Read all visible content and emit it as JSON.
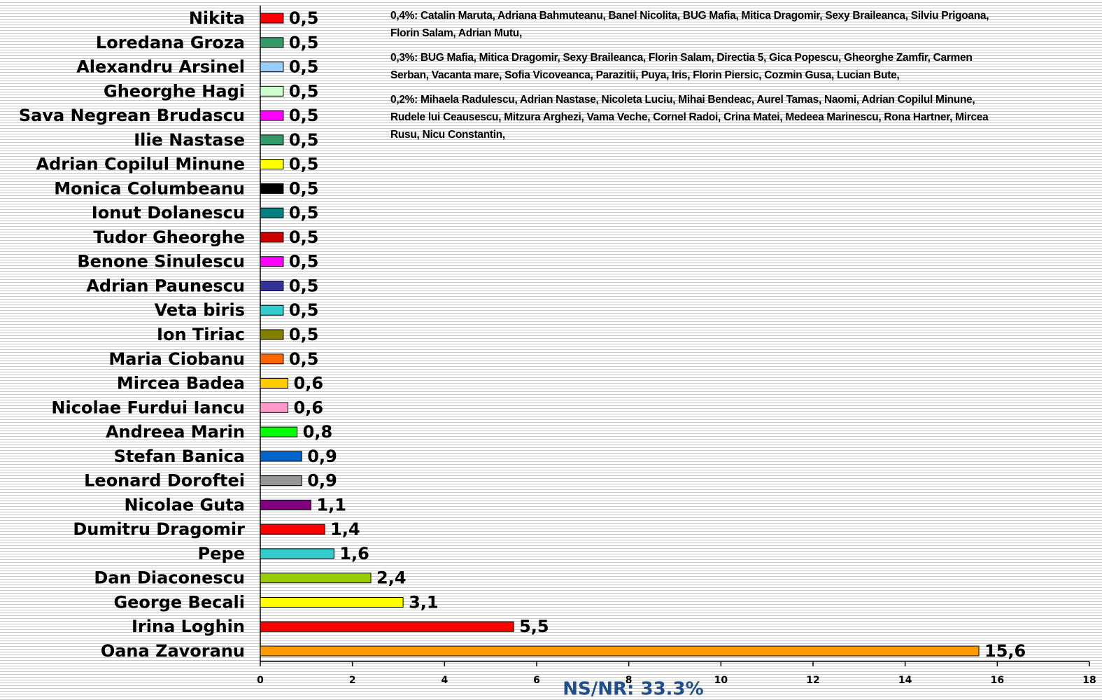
{
  "chart_data": {
    "type": "bar",
    "orientation": "horizontal",
    "categories": [
      "Nikita",
      "Loredana Groza",
      "Alexandru Arsinel",
      "Gheorghe Hagi",
      "Sava Negrean Brudascu",
      "Ilie Nastase",
      "Adrian Copilul Minune",
      "Monica Columbeanu",
      "Ionut Dolanescu",
      "Tudor Gheorghe",
      "Benone Sinulescu",
      "Adrian Paunescu",
      "Veta biris",
      "Ion Tiriac",
      "Maria Ciobanu",
      "Mircea Badea",
      "Nicolae Furdui Iancu",
      "Andreea Marin",
      "Stefan Banica",
      "Leonard Doroftei",
      "Nicolae Guta",
      "Dumitru Dragomir",
      "Pepe",
      "Dan Diaconescu",
      "George Becali",
      "Irina Loghin",
      "Oana Zavoranu"
    ],
    "values": [
      0.5,
      0.5,
      0.5,
      0.5,
      0.5,
      0.5,
      0.5,
      0.5,
      0.5,
      0.5,
      0.5,
      0.5,
      0.5,
      0.5,
      0.5,
      0.6,
      0.6,
      0.8,
      0.9,
      0.9,
      1.1,
      1.4,
      1.6,
      2.4,
      3.1,
      5.5,
      15.6
    ],
    "value_labels": [
      "0,5",
      "0,5",
      "0,5",
      "0,5",
      "0,5",
      "0,5",
      "0,5",
      "0,5",
      "0,5",
      "0,5",
      "0,5",
      "0,5",
      "0,5",
      "0,5",
      "0,5",
      "0,6",
      "0,6",
      "0,8",
      "0,9",
      "0,9",
      "1,1",
      "1,4",
      "1,6",
      "2,4",
      "3,1",
      "5,5",
      "15,6"
    ],
    "colors": [
      "#ff0000",
      "#339966",
      "#99ccff",
      "#ccffcc",
      "#ff00ff",
      "#339966",
      "#ffff00",
      "#000000",
      "#008080",
      "#cc0000",
      "#ff00ff",
      "#333399",
      "#33cccc",
      "#808000",
      "#ff6600",
      "#ffcc00",
      "#ff99cc",
      "#00ff00",
      "#0066cc",
      "#969696",
      "#800080",
      "#ff0000",
      "#33cccc",
      "#99cc00",
      "#ffff00",
      "#ff0000",
      "#ff9900"
    ],
    "xlim": [
      0,
      18
    ],
    "xticks": [
      0,
      2,
      4,
      6,
      8,
      10,
      12,
      14,
      16,
      18
    ],
    "annotations": [
      "0,4%: Catalin Maruta, Adriana Bahmuteanu, Banel Nicolita, BUG Mafia, Mitica Dragomir, Sexy Braileanca, Silviu Prigoana, Florin Salam, Adrian Mutu,",
      "0,3%: BUG Mafia, Mitica Dragomir, Sexy Braileanca, Florin Salam, Directia 5, Gica Popescu, Gheorghe Zamfir, Carmen Serban, Vacanta mare, Sofia Vicoveanca, Parazitii, Puya, Iris, Florin Piersic, Cozmin Gusa, Lucian Bute,",
      "0,2%: Mihaela Radulescu, Adrian Nastase, Nicoleta Luciu, Mihai Bendeac, Aurel Tamas, Naomi, Adrian Copilul Minune, Rudele lui Ceausescu, Mitzura Arghezi, Vama Veche, Cornel Radoi, Crina Matei, Medeea Marinescu, Rona Hartner, Mircea Rusu, Nicu Constantin,"
    ],
    "footnote": "NS/NR: 33.3%"
  }
}
